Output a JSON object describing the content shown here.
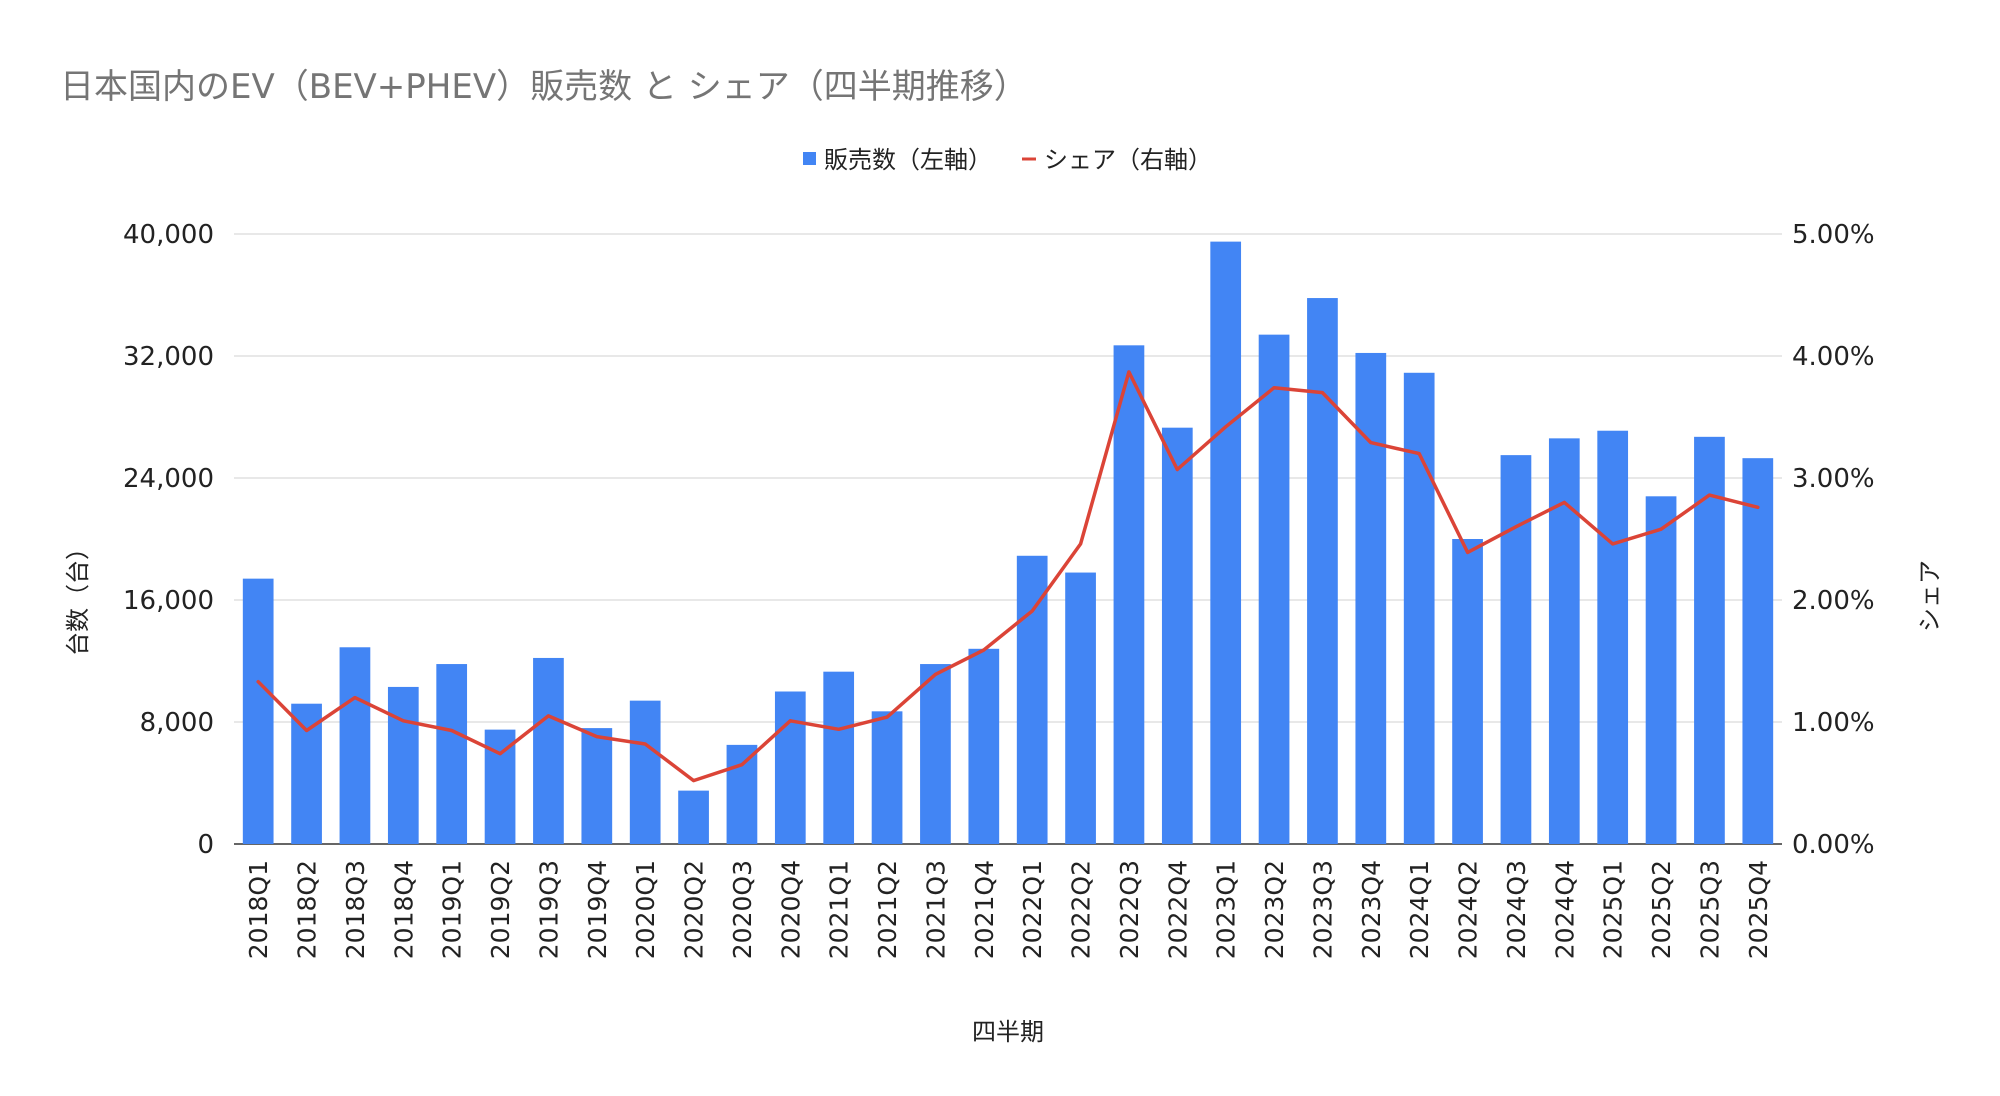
{
  "chart_data": {
    "type": "bar",
    "title": "日本国内のEV（BEV+PHEV）販売数 と シェア（四半期推移）",
    "xlabel": "四半期",
    "ylabel": "台数（台）",
    "y2label": "シェア",
    "ylim": [
      0,
      40000
    ],
    "y2lim": [
      0,
      0.05
    ],
    "yticks": [
      "0",
      "8,000",
      "16,000",
      "24,000",
      "32,000",
      "40,000"
    ],
    "y2ticks": [
      "0.00%",
      "1.00%",
      "2.00%",
      "3.00%",
      "4.00%",
      "5.00%"
    ],
    "grid": true,
    "legend_position": "top-center",
    "categories": [
      "2018Q1",
      "2018Q2",
      "2018Q3",
      "2018Q4",
      "2019Q1",
      "2019Q2",
      "2019Q3",
      "2019Q4",
      "2020Q1",
      "2020Q2",
      "2020Q3",
      "2020Q4",
      "2021Q1",
      "2021Q2",
      "2021Q3",
      "2021Q4",
      "2022Q1",
      "2022Q2",
      "2022Q3",
      "2022Q4",
      "2023Q1",
      "2023Q2",
      "2023Q3",
      "2023Q4",
      "2024Q1",
      "2024Q2",
      "2024Q3",
      "2024Q4",
      "2025Q1",
      "2025Q2",
      "2025Q3",
      "2025Q4"
    ],
    "series": [
      {
        "name": "販売数（左軸）",
        "type": "bar",
        "axis": "left",
        "color": "#4285F4",
        "values": [
          17400,
          9200,
          12900,
          10300,
          11800,
          7500,
          12200,
          7600,
          9400,
          3500,
          6500,
          10000,
          11300,
          8700,
          11800,
          12800,
          18900,
          17800,
          32700,
          27300,
          39500,
          33400,
          35800,
          32200,
          30900,
          20000,
          25500,
          26600,
          27100,
          22800,
          26700,
          25300
        ]
      },
      {
        "name": "シェア（右軸）",
        "type": "line",
        "axis": "right",
        "color": "#DB4437",
        "values": [
          0.0133,
          0.0093,
          0.012,
          0.0101,
          0.0093,
          0.0074,
          0.0105,
          0.0088,
          0.0082,
          0.0052,
          0.0065,
          0.0101,
          0.0094,
          0.0104,
          0.0139,
          0.0159,
          0.0191,
          0.0246,
          0.0387,
          0.0307,
          0.0342,
          0.0374,
          0.037,
          0.0329,
          0.032,
          0.0239,
          0.026,
          0.028,
          0.0246,
          0.0258,
          0.0286,
          0.0276
        ]
      }
    ]
  }
}
